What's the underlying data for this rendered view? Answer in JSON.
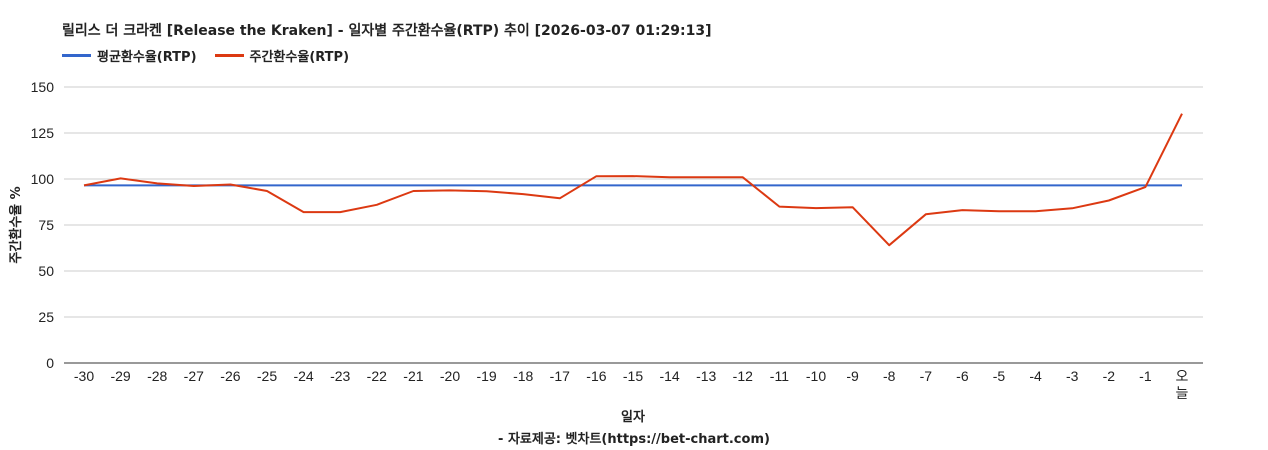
{
  "chart_data": {
    "type": "line",
    "title": "릴리스 더 크라켄 [Release the Kraken] - 일자별 주간환수율(RTP) 추이 [2026-03-07 01:29:13]",
    "xlabel": "일자",
    "ylabel": "주간환수율 %",
    "source": "- 자료제공: 벳차트(https://bet-chart.com)",
    "ylim": [
      0,
      150
    ],
    "yticks": [
      "0",
      "25",
      "50",
      "75",
      "100",
      "125",
      "150"
    ],
    "grid": true,
    "legend_position": "top-left",
    "categories": [
      "-30",
      "-29",
      "-28",
      "-27",
      "-26",
      "-25",
      "-24",
      "-23",
      "-22",
      "-21",
      "-20",
      "-19",
      "-18",
      "-17",
      "-16",
      "-15",
      "-14",
      "-13",
      "-12",
      "-11",
      "-10",
      "-9",
      "-8",
      "-7",
      "-6",
      "-5",
      "-4",
      "-3",
      "-2",
      "-1",
      "오늘"
    ],
    "series": [
      {
        "name": "평균환수율(RTP)",
        "color": "#3366cc",
        "values": [
          96.5,
          96.5,
          96.5,
          96.5,
          96.5,
          96.5,
          96.5,
          96.5,
          96.5,
          96.5,
          96.5,
          96.5,
          96.5,
          96.5,
          96.5,
          96.5,
          96.5,
          96.5,
          96.5,
          96.5,
          96.5,
          96.5,
          96.5,
          96.5,
          96.5,
          96.5,
          96.5,
          96.5,
          96.5,
          96.5,
          96.5
        ]
      },
      {
        "name": "주간환수율(RTP)",
        "color": "#dc3912",
        "values": [
          96.5,
          100.3,
          97.6,
          96.2,
          97.0,
          93.5,
          82.0,
          82.0,
          86.0,
          93.5,
          93.8,
          93.3,
          91.8,
          89.5,
          101.5,
          101.6,
          100.9,
          100.9,
          100.9,
          85.0,
          84.2,
          84.7,
          64.0,
          80.8,
          83.1,
          82.5,
          82.5,
          84.1,
          88.3,
          95.6,
          135.5
        ]
      }
    ]
  }
}
